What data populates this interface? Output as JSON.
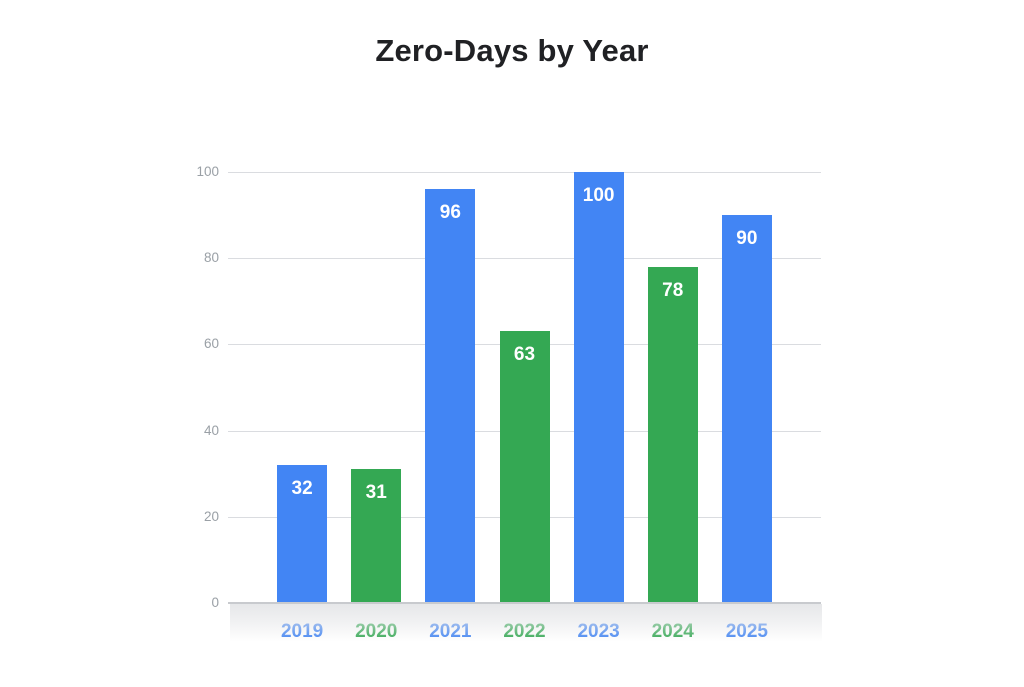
{
  "chart_data": {
    "type": "bar",
    "title": "Zero-Days by Year",
    "categories": [
      "2019",
      "2020",
      "2021",
      "2022",
      "2023",
      "2024",
      "2025"
    ],
    "values": [
      32,
      31,
      96,
      63,
      100,
      78,
      90
    ],
    "bar_colors": [
      "#4285F4",
      "#34A853",
      "#4285F4",
      "#34A853",
      "#4285F4",
      "#34A853",
      "#4285F4"
    ],
    "category_label_colors": [
      "#4285F4",
      "#34A853",
      "#4285F4",
      "#34A853",
      "#4285F4",
      "#34A853",
      "#4285F4"
    ],
    "value_labels": [
      "32",
      "31",
      "96",
      "63",
      "100",
      "78",
      "90"
    ],
    "value_label_position": "inside-top",
    "value_label_color": "#FFFFFF",
    "xlabel": "",
    "ylabel": "",
    "ylim": [
      0,
      100
    ],
    "yticks": [
      0,
      20,
      40,
      60,
      80,
      100
    ],
    "grid": "horizontal",
    "legend": "none"
  },
  "style_colors": {
    "background": "#FFFFFF",
    "title_text": "#202124",
    "tick_label": "#9AA0A6",
    "gridline": "#DADCE0",
    "baseline": "#C8CACE",
    "baseline_shadow": "#E6E7E9"
  }
}
